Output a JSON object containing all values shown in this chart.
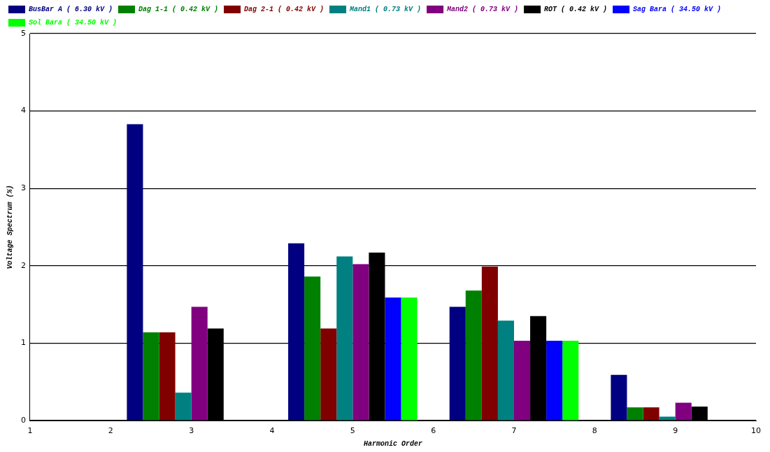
{
  "chart_data": {
    "type": "bar",
    "xlabel": "Harmonic Order",
    "ylabel": "Voltage Spectrum (%)",
    "x": [
      3,
      5,
      7,
      9
    ],
    "series": [
      {
        "name": "BusBar A ( 6.30 kV )",
        "color": "#000080",
        "values": [
          3.83,
          2.29,
          1.47,
          0.59
        ]
      },
      {
        "name": "Dag 1-1 ( 0.42 kV )",
        "color": "#008000",
        "values": [
          1.14,
          1.86,
          1.68,
          0.17
        ]
      },
      {
        "name": "Dag 2-1 ( 0.42 kV )",
        "color": "#800000",
        "values": [
          1.14,
          1.19,
          1.99,
          0.17
        ]
      },
      {
        "name": "Mand1 ( 0.73 kV )",
        "color": "#008080",
        "values": [
          0.36,
          2.12,
          1.29,
          0.05
        ]
      },
      {
        "name": "Mand2 ( 0.73 kV )",
        "color": "#800080",
        "values": [
          1.47,
          2.02,
          1.03,
          0.23
        ]
      },
      {
        "name": "ROT ( 0.42 kV )",
        "color": "#000000",
        "values": [
          1.19,
          2.17,
          1.35,
          0.18
        ]
      },
      {
        "name": "Sag Bara ( 34.50 kV )",
        "color": "#0000ff",
        "values": [
          0,
          1.59,
          1.03,
          0
        ]
      },
      {
        "name": "Sol Bara ( 34.50 kV )",
        "color": "#00ff00",
        "values": [
          0,
          1.59,
          1.03,
          0
        ]
      }
    ],
    "xlim": [
      1,
      10
    ],
    "xticks": [
      1,
      2,
      3,
      4,
      5,
      6,
      7,
      8,
      9,
      10
    ],
    "ylim": [
      0,
      5
    ],
    "yticks": [
      0,
      1,
      2,
      3,
      4,
      5
    ],
    "grid": "y",
    "legend": "top left"
  }
}
